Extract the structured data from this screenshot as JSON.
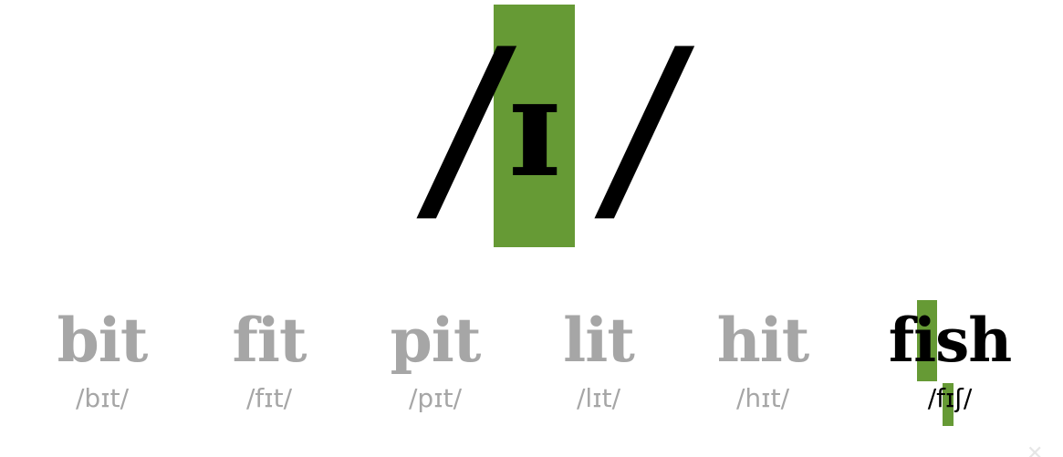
{
  "phoneme": {
    "symbol": "ɪ",
    "open_slash": "/",
    "close_slash": "/",
    "highlight_color": "#669a35"
  },
  "words": [
    {
      "spelling": "bit",
      "transcription": "/bɪt/"
    },
    {
      "spelling": "fit",
      "transcription": "/fɪt/"
    },
    {
      "spelling": "pit",
      "transcription": "/pɪt/"
    },
    {
      "spelling": "lit",
      "transcription": "/lɪt/"
    },
    {
      "spelling": "hit",
      "transcription": "/hɪt/"
    },
    {
      "spelling": "fish",
      "transcription": "/fɪʃ/",
      "active": true
    }
  ],
  "colors": {
    "inactive_text": "#a6a6a6",
    "active_text": "#000000",
    "background": "#ffffff"
  }
}
